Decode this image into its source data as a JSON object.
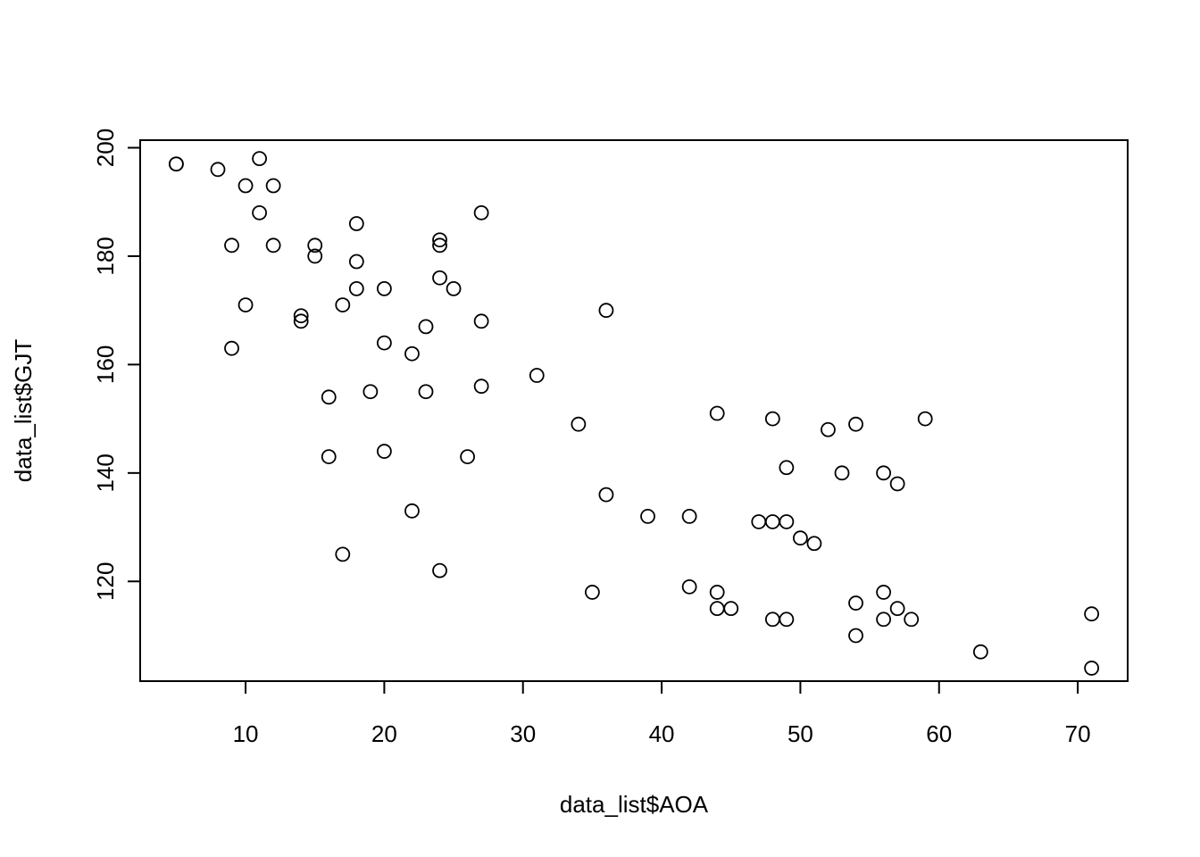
{
  "chart_data": {
    "type": "scatter",
    "title": "",
    "xlabel": "data_list$AOA",
    "ylabel": "data_list$GJT",
    "xlim": [
      2.4,
      73.6
    ],
    "ylim": [
      101.6,
      201.4
    ],
    "x_ticks": [
      10,
      20,
      30,
      40,
      50,
      60,
      70
    ],
    "y_ticks": [
      120,
      140,
      160,
      180,
      200
    ],
    "x_tick_labels": [
      "10",
      "20",
      "30",
      "40",
      "50",
      "60",
      "70"
    ],
    "y_tick_labels": [
      "120",
      "140",
      "160",
      "180",
      "200"
    ],
    "grid": false,
    "legend": "none",
    "marker": "open-circle",
    "color": "#000000",
    "points": [
      {
        "x": 5,
        "y": 197
      },
      {
        "x": 5,
        "y": 197
      },
      {
        "x": 8,
        "y": 196
      },
      {
        "x": 10,
        "y": 193
      },
      {
        "x": 11,
        "y": 198
      },
      {
        "x": 12,
        "y": 193
      },
      {
        "x": 11,
        "y": 188
      },
      {
        "x": 9,
        "y": 182
      },
      {
        "x": 12,
        "y": 182
      },
      {
        "x": 10,
        "y": 171
      },
      {
        "x": 9,
        "y": 163
      },
      {
        "x": 15,
        "y": 182
      },
      {
        "x": 15,
        "y": 180
      },
      {
        "x": 14,
        "y": 169
      },
      {
        "x": 14,
        "y": 168
      },
      {
        "x": 18,
        "y": 186
      },
      {
        "x": 18,
        "y": 179
      },
      {
        "x": 18,
        "y": 174
      },
      {
        "x": 17,
        "y": 171
      },
      {
        "x": 16,
        "y": 154
      },
      {
        "x": 16,
        "y": 143
      },
      {
        "x": 17,
        "y": 125
      },
      {
        "x": 19,
        "y": 155
      },
      {
        "x": 20,
        "y": 174
      },
      {
        "x": 20,
        "y": 164
      },
      {
        "x": 20,
        "y": 144
      },
      {
        "x": 22,
        "y": 162
      },
      {
        "x": 22,
        "y": 133
      },
      {
        "x": 23,
        "y": 167
      },
      {
        "x": 23,
        "y": 155
      },
      {
        "x": 24,
        "y": 183
      },
      {
        "x": 24,
        "y": 182
      },
      {
        "x": 24,
        "y": 176
      },
      {
        "x": 24,
        "y": 122
      },
      {
        "x": 25,
        "y": 174
      },
      {
        "x": 26,
        "y": 143
      },
      {
        "x": 27,
        "y": 188
      },
      {
        "x": 27,
        "y": 168
      },
      {
        "x": 27,
        "y": 156
      },
      {
        "x": 31,
        "y": 158
      },
      {
        "x": 34,
        "y": 149
      },
      {
        "x": 35,
        "y": 118
      },
      {
        "x": 36,
        "y": 170
      },
      {
        "x": 36,
        "y": 136
      },
      {
        "x": 39,
        "y": 132
      },
      {
        "x": 42,
        "y": 132
      },
      {
        "x": 42,
        "y": 119
      },
      {
        "x": 44,
        "y": 151
      },
      {
        "x": 44,
        "y": 118
      },
      {
        "x": 44,
        "y": 115
      },
      {
        "x": 45,
        "y": 115
      },
      {
        "x": 47,
        "y": 131
      },
      {
        "x": 48,
        "y": 150
      },
      {
        "x": 48,
        "y": 131
      },
      {
        "x": 48,
        "y": 113
      },
      {
        "x": 49,
        "y": 141
      },
      {
        "x": 49,
        "y": 131
      },
      {
        "x": 49,
        "y": 113
      },
      {
        "x": 50,
        "y": 128
      },
      {
        "x": 51,
        "y": 127
      },
      {
        "x": 52,
        "y": 148
      },
      {
        "x": 53,
        "y": 140
      },
      {
        "x": 54,
        "y": 149
      },
      {
        "x": 54,
        "y": 116
      },
      {
        "x": 54,
        "y": 110
      },
      {
        "x": 56,
        "y": 140
      },
      {
        "x": 56,
        "y": 118
      },
      {
        "x": 56,
        "y": 113
      },
      {
        "x": 57,
        "y": 138
      },
      {
        "x": 57,
        "y": 115
      },
      {
        "x": 58,
        "y": 113
      },
      {
        "x": 59,
        "y": 150
      },
      {
        "x": 63,
        "y": 107
      },
      {
        "x": 71,
        "y": 114
      },
      {
        "x": 71,
        "y": 104
      }
    ]
  }
}
